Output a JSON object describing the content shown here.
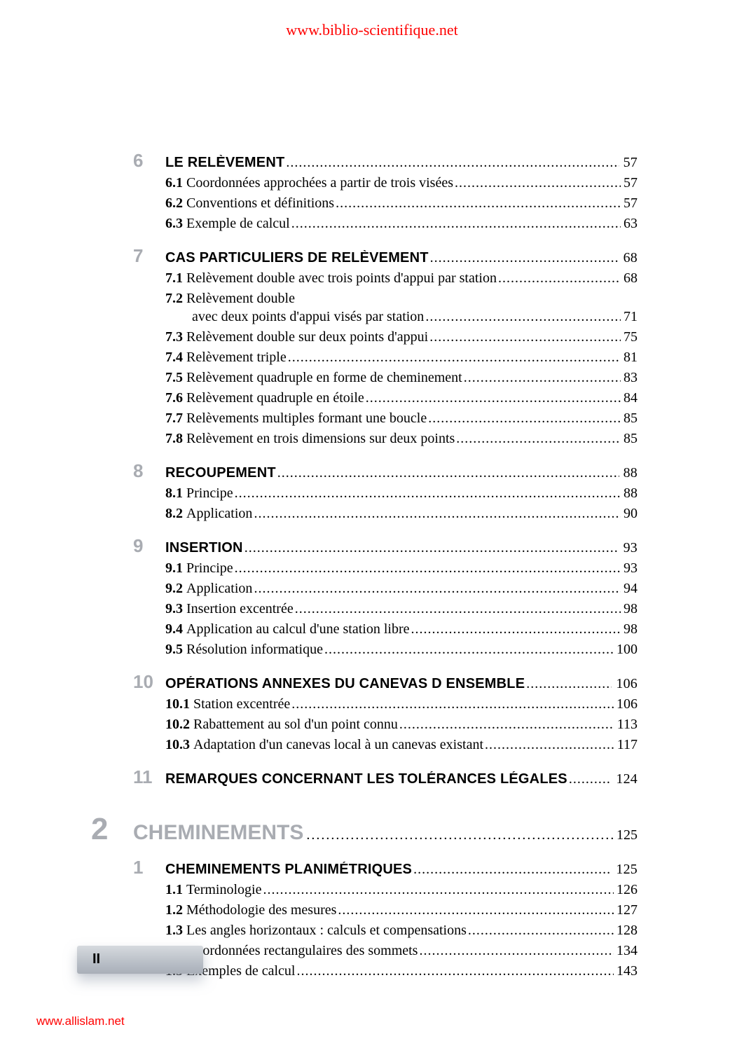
{
  "header_link": "www.biblio-scientifique.net",
  "footer_link": "www.allislam.net",
  "page_marker": "II",
  "colors": {
    "link_color": "#ff0000",
    "faded_gray": "#a9acb2",
    "text_color": "#000000",
    "background": "#ffffff",
    "marker_gradient_top": "#d6dadf",
    "marker_gradient_bottom": "#a9afb8"
  },
  "sections": {
    "s6": {
      "num": "6",
      "title": "LE RELÈVEMENT",
      "page": "57"
    },
    "s6_1": {
      "label": "6.1",
      "text": "Coordonnées approchées a partir de trois visées",
      "page": "57"
    },
    "s6_2": {
      "label": "6.2",
      "text": "Conventions et définitions",
      "page": "57"
    },
    "s6_3": {
      "label": "6.3",
      "text": "Exemple de calcul",
      "page": "63"
    },
    "s7": {
      "num": "7",
      "title": "CAS PARTICULIERS DE RELÈVEMENT",
      "page": "68"
    },
    "s7_1": {
      "label": "7.1",
      "text": "Relèvement double avec trois points d'appui par station",
      "page": "68"
    },
    "s7_2": {
      "label": "7.2",
      "text": "Relèvement double",
      "cont": "avec deux points d'appui visés par station",
      "page": "71"
    },
    "s7_3": {
      "label": "7.3",
      "text": "Relèvement double sur deux points d'appui",
      "page": "75"
    },
    "s7_4": {
      "label": "7.4",
      "text": "Relèvement triple",
      "page": "81"
    },
    "s7_5": {
      "label": "7.5",
      "text": "Relèvement quadruple en forme de cheminement",
      "page": "83"
    },
    "s7_6": {
      "label": "7.6",
      "text": "Relèvement quadruple en étoile",
      "page": "84"
    },
    "s7_7": {
      "label": "7.7",
      "text": "Relèvements multiples formant une boucle",
      "page": "85"
    },
    "s7_8": {
      "label": "7.8",
      "text": "Relèvement en trois dimensions sur deux points",
      "page": "85"
    },
    "s8": {
      "num": "8",
      "title": "RECOUPEMENT",
      "page": "88"
    },
    "s8_1": {
      "label": "8.1",
      "text": "Principe",
      "page": "88"
    },
    "s8_2": {
      "label": "8.2",
      "text": "Application",
      "page": "90"
    },
    "s9": {
      "num": "9",
      "title": "INSERTION",
      "page": "93"
    },
    "s9_1": {
      "label": "9.1",
      "text": "Principe",
      "page": "93"
    },
    "s9_2": {
      "label": "9.2",
      "text": "Application",
      "page": "94"
    },
    "s9_3": {
      "label": "9.3",
      "text": "Insertion excentrée",
      "page": "98"
    },
    "s9_4": {
      "label": "9.4",
      "text": "Application au calcul d'une station libre",
      "page": "98"
    },
    "s9_5": {
      "label": "9.5",
      "text": "Résolution informatique",
      "page": "100"
    },
    "s10": {
      "num": "10",
      "title": "OPÉRATIONS ANNEXES DU CANEVAS D ENSEMBLE",
      "page": "106"
    },
    "s10_1": {
      "label": "10.1",
      "text": "Station excentrée",
      "page": "106"
    },
    "s10_2": {
      "label": "10.2",
      "text": "Rabattement au sol d'un point connu",
      "page": "113"
    },
    "s10_3": {
      "label": "10.3",
      "text": "Adaptation d'un canevas local à un canevas existant",
      "page": "117"
    },
    "s11": {
      "num": "11",
      "title": "REMARQUES CONCERNANT LES TOLÉRANCES LÉGALES",
      "page": "124"
    }
  },
  "chapter2": {
    "num": "2",
    "title": "CHEMINEMENTS",
    "page": "125"
  },
  "ch2_sections": {
    "s1": {
      "num": "1",
      "title": "CHEMINEMENTS PLANIMÉTRIQUES",
      "page": "125"
    },
    "s1_1": {
      "label": "1.1",
      "text": "Terminologie",
      "page": "126"
    },
    "s1_2": {
      "label": "1.2",
      "text": "Méthodologie des mesures",
      "page": "127"
    },
    "s1_3": {
      "label": "1.3",
      "text": "Les angles horizontaux : calculs et compensations",
      "page": "128"
    },
    "s1_4": {
      "label": "1.4",
      "text": "Coordonnées rectangulaires des sommets",
      "page": "134"
    },
    "s1_5": {
      "label": "1.5",
      "text": "Exemples de calcul",
      "page": "143"
    }
  }
}
